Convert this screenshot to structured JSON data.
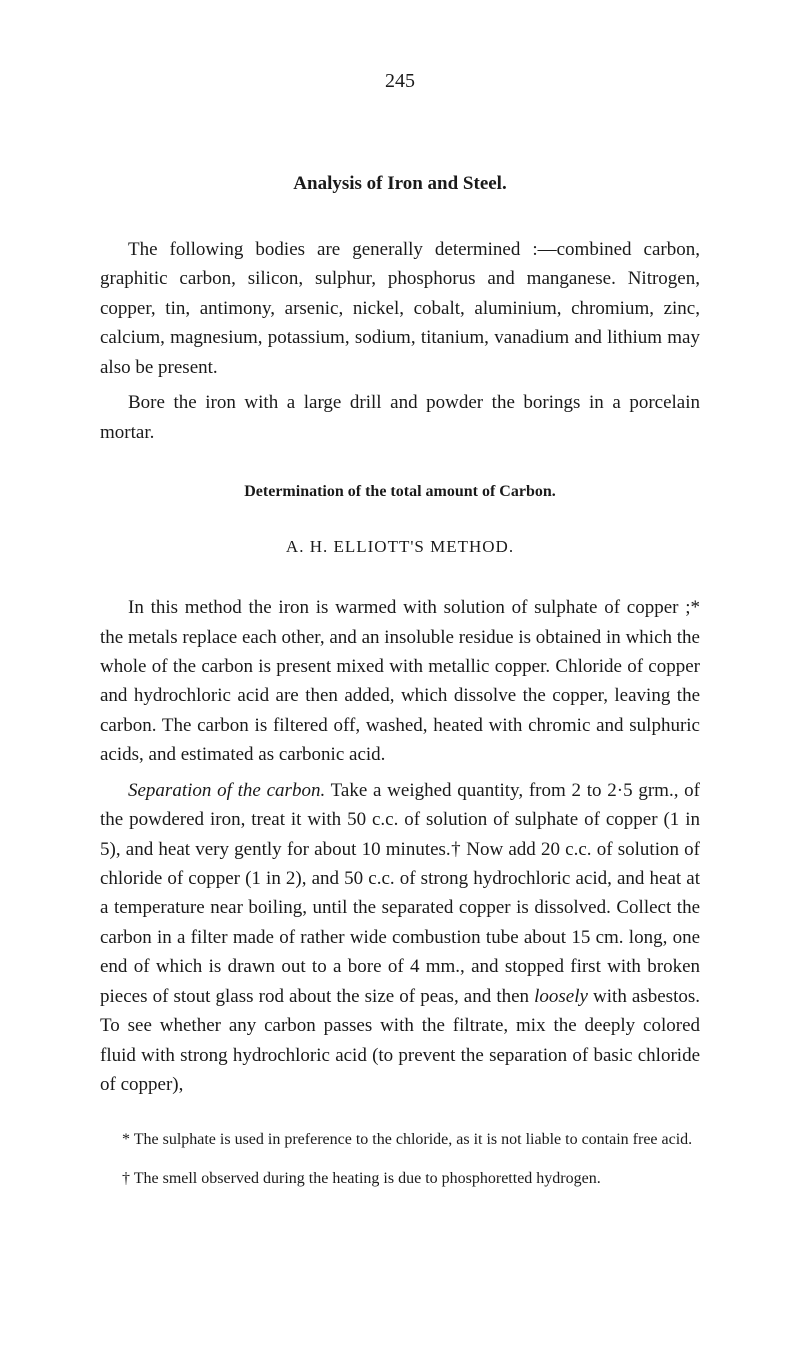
{
  "pageNumber": "245",
  "mainTitle": "Analysis of Iron and Steel.",
  "para1": "The following bodies are generally determined :—combined carbon, graphitic carbon, silicon, sulphur, phosphorus and manganese. Nitrogen, copper, tin, antimony, arsenic, nickel, cobalt, aluminium, chromium, zinc, calcium, magnesium, potassium, sodium, titanium, vanadium and lithium may also be present.",
  "para2": "Bore the iron with a large drill and powder the borings in a porcelain mortar.",
  "sectionTitle": "Determination of the total amount of Carbon.",
  "methodTitle": "A. H. ELLIOTT'S METHOD.",
  "para3": "In this method the iron is warmed with solution of sulphate of copper ;* the metals replace each other, and an insoluble residue is obtained in which the whole of the carbon is present mixed with metallic copper. Chloride of copper and hydrochloric acid are then added, which dissolve the copper, leaving the carbon. The carbon is filtered off, washed, heated with chromic and sulphuric acids, and estimated as carbonic acid.",
  "para4_lead_italic": "Separation of the carbon.",
  "para4_rest": " Take a weighed quantity, from 2 to 2·5 grm., of the powdered iron, treat it with 50 c.c. of solution of sulphate of copper (1 in 5), and heat very gently for about 10 minutes.† Now add 20 c.c. of solution of chloride of copper (1 in 2), and 50 c.c. of strong hydrochloric acid, and heat at a temperature near boiling, until the separated copper is dissolved. Collect the carbon in a filter made of rather wide combustion tube about 15 cm. long, one end of which is drawn out to a bore of 4 mm., and stopped first with broken pieces of stout glass rod about the size of peas, and then ",
  "para4_loosely": "loosely",
  "para4_tail": " with asbestos. To see whether any carbon passes with the filtrate, mix the deeply colored fluid with strong hydrochloric acid (to prevent the separation of basic chloride of copper),",
  "footnote1": "* The sulphate is used in preference to the chloride, as it is not liable to contain free acid.",
  "footnote2": "† The smell observed during the heating is due to phosphoretted hydrogen."
}
